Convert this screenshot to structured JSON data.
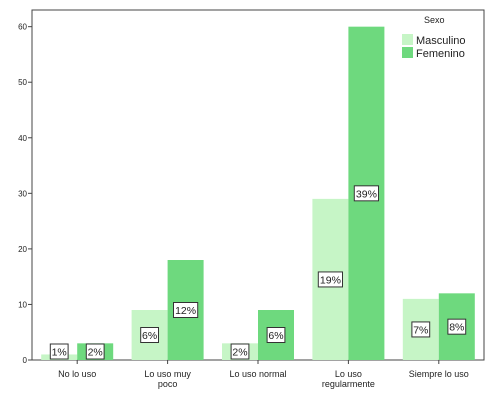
{
  "chart_data": {
    "type": "bar",
    "categories": [
      "No lo uso",
      "Lo uso muy poco",
      "Lo uso normal",
      "Lo uso regularmente",
      "Siempre lo uso"
    ],
    "category_label_lines": [
      [
        "No lo uso"
      ],
      [
        "Lo uso muy",
        "poco"
      ],
      [
        "Lo uso normal"
      ],
      [
        "Lo uso",
        "regularmente"
      ],
      [
        "Siempre lo uso"
      ]
    ],
    "legend_title": "Sexo",
    "legend_position": "top-right",
    "series": [
      {
        "name": "Masculino",
        "color": "#c6f5c6",
        "values": [
          1,
          9,
          3,
          29,
          11
        ],
        "labels": [
          "1%",
          "6%",
          "2%",
          "19%",
          "7%"
        ]
      },
      {
        "name": "Femenino",
        "color": "#6ed97e",
        "values": [
          3,
          18,
          9,
          60,
          12
        ],
        "labels": [
          "2%",
          "12%",
          "6%",
          "39%",
          "8%"
        ]
      }
    ],
    "ylim": [
      0,
      63
    ],
    "yticks": [
      0,
      10,
      20,
      30,
      40,
      50,
      60
    ],
    "grid": false
  }
}
